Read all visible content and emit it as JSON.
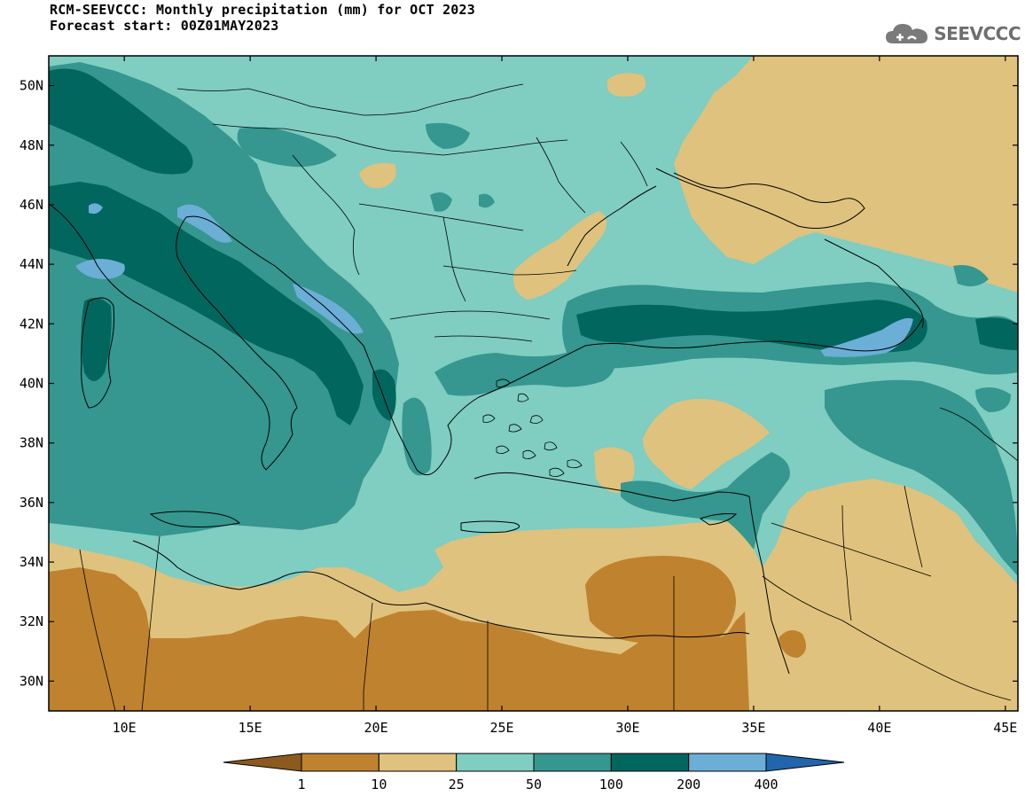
{
  "title_line1": "RCM-SEEVCCC: Monthly precipitation (mm) for OCT 2023",
  "title_line2": "Forecast start: 00Z01MAY2023",
  "logo_text": "SEEVCCC",
  "logo_icon": "cloud-icon",
  "map": {
    "lat_ticks": [
      "50N",
      "48N",
      "46N",
      "44N",
      "42N",
      "40N",
      "38N",
      "36N",
      "34N",
      "32N",
      "30N"
    ],
    "lon_ticks": [
      "10E",
      "15E",
      "20E",
      "25E",
      "30E",
      "35E",
      "40E",
      "45E"
    ],
    "extent": {
      "lon_min": 7,
      "lon_max": 45.5,
      "lat_min": 29,
      "lat_max": 51
    }
  },
  "legend": {
    "labels": [
      "1",
      "10",
      "25",
      "50",
      "100",
      "200",
      "400"
    ],
    "colors": [
      "#8c5a1c",
      "#bf822f",
      "#dfc27d",
      "#80cdc1",
      "#35978f",
      "#01665e",
      "#6baed6",
      "#2166ac"
    ]
  }
}
